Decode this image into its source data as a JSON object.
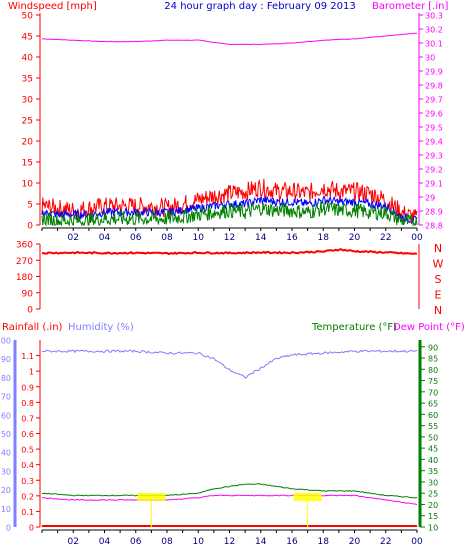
{
  "header": {
    "wind_title": "Windspeed [mph]",
    "graph_title": "24 hour graph day : February 09 2013",
    "baro_title": "Barometer [.in]"
  },
  "colors": {
    "wind_gust": "#ff0000",
    "wind_avg": "#008000",
    "wind_line": "#0000ff",
    "barometer": "#ff00ff",
    "direction": "#ff0000",
    "humidity": "#7f7fff",
    "temperature": "#008000",
    "dewpoint": "#ff00ff",
    "rainfall": "#ff0000",
    "annotation": "#ffff00",
    "axis_x": "#000080"
  },
  "x_tick_labels": [
    "02",
    "04",
    "06",
    "08",
    "10",
    "12",
    "14",
    "16",
    "18",
    "20",
    "22",
    "00"
  ],
  "panel2_labels": {
    "rain": "Rainfall (.in)",
    "humidity": "Humidity (%)",
    "temperature": "Temperature (°F)",
    "dewpoint": "Dew Point (°F)"
  },
  "compass_labels": [
    "N",
    "W",
    "S",
    "E",
    "N"
  ],
  "chart_data": [
    {
      "type": "line",
      "x_unit": "hour",
      "x_range": [
        0,
        24
      ],
      "ylim_left": [
        0,
        50
      ],
      "yticks_left": [
        0,
        5,
        10,
        15,
        20,
        25,
        30,
        35,
        40,
        45,
        50
      ],
      "ylim_right": [
        28.8,
        30.3
      ],
      "yticks_right": [
        "28.8",
        "28.9",
        "29",
        "29.1",
        "29.2",
        "29.3",
        "29.4",
        "29.5",
        "29.6",
        "29.7",
        "29.8",
        "29.9",
        "30",
        "30.1",
        "30.2",
        "30.3"
      ],
      "grid": false,
      "series": [
        {
          "key": "gust",
          "x": [
            0,
            1,
            2,
            3,
            4,
            5,
            6,
            7,
            8,
            9,
            10,
            11,
            12,
            13,
            14,
            15,
            16,
            17,
            18,
            19,
            20,
            21,
            22,
            23,
            24
          ],
          "y": [
            4.5,
            4,
            3.5,
            4,
            4.5,
            4.5,
            4.5,
            4.5,
            4,
            5,
            6,
            7,
            7.5,
            8,
            9,
            8,
            8,
            7.5,
            9,
            8,
            8,
            7.5,
            6,
            3,
            1.5
          ]
        },
        {
          "key": "avg",
          "x": [
            0,
            1,
            2,
            3,
            4,
            5,
            6,
            7,
            8,
            9,
            10,
            11,
            12,
            13,
            14,
            15,
            16,
            17,
            18,
            19,
            20,
            21,
            22,
            23,
            24
          ],
          "y": [
            3,
            2.5,
            2.5,
            2.5,
            3,
            3,
            3,
            3,
            3,
            3.5,
            4,
            4.5,
            5,
            5,
            6,
            5.5,
            5.5,
            5,
            6,
            5.5,
            5.5,
            5,
            4.5,
            2,
            1
          ]
        },
        {
          "key": "dir_low",
          "x": [
            0,
            1,
            2,
            3,
            4,
            5,
            6,
            7,
            8,
            9,
            10,
            11,
            12,
            13,
            14,
            15,
            16,
            17,
            18,
            19,
            20,
            21,
            22,
            23,
            24
          ],
          "y": [
            1.5,
            1,
            1,
            1,
            1.5,
            1.5,
            1.5,
            1.5,
            1.5,
            2,
            2.5,
            3,
            3.5,
            3,
            4,
            3.5,
            3.5,
            3,
            4,
            3.5,
            3.5,
            3,
            3,
            1,
            0.5
          ]
        },
        {
          "key": "barometer",
          "x": [
            0,
            2,
            4,
            6,
            8,
            10,
            12,
            13,
            14,
            16,
            18,
            20,
            22,
            24
          ],
          "y": [
            30.13,
            30.12,
            30.11,
            30.11,
            30.12,
            30.12,
            30.09,
            30.09,
            30.09,
            30.1,
            30.12,
            30.13,
            30.15,
            30.17
          ]
        }
      ]
    },
    {
      "type": "line",
      "x_unit": "hour",
      "x_range": [
        0,
        24
      ],
      "ylim": [
        0,
        360
      ],
      "yticks": [
        0,
        90,
        180,
        270,
        360
      ],
      "series": [
        {
          "key": "direction",
          "x": [
            0,
            2,
            4,
            6,
            8,
            10,
            12,
            14,
            16,
            18,
            19,
            20,
            22,
            24
          ],
          "y": [
            310,
            312,
            310,
            311,
            308,
            312,
            310,
            313,
            312,
            318,
            330,
            320,
            313,
            305
          ]
        }
      ]
    },
    {
      "type": "line",
      "x_unit": "hour",
      "x_range": [
        0,
        24
      ],
      "ylim_humidity": [
        0,
        100
      ],
      "yticks_humidity": [
        0,
        10,
        20,
        30,
        40,
        50,
        60,
        70,
        80,
        90,
        100
      ],
      "ylim_rain": [
        0,
        1.2
      ],
      "yticks_rain": [
        "0",
        "0.1",
        "0.2",
        "0.3",
        "0.4",
        "0.5",
        "0.6",
        "0.7",
        "0.8",
        "0.9",
        "1",
        "1.1"
      ],
      "ylim_temp": [
        10,
        93
      ],
      "yticks_temp": [
        10,
        15,
        20,
        25,
        30,
        35,
        40,
        45,
        50,
        55,
        60,
        65,
        70,
        75,
        80,
        85,
        90
      ],
      "annotations": [
        {
          "x": 7.0,
          "value": ""
        },
        {
          "x": 17.0,
          "value": ""
        }
      ],
      "series": [
        {
          "key": "humidity",
          "x": [
            0,
            2,
            4,
            6,
            8,
            10,
            11,
            12,
            13,
            14,
            15,
            16,
            18,
            20,
            22,
            24
          ],
          "y": [
            94,
            94,
            94,
            94,
            93,
            93,
            90,
            84,
            80,
            85,
            90,
            92,
            93,
            94,
            94,
            94
          ]
        },
        {
          "key": "temperature",
          "x": [
            0,
            2,
            4,
            6,
            8,
            10,
            11,
            12,
            13,
            14,
            15,
            16,
            18,
            20,
            22,
            24
          ],
          "y": [
            25,
            24,
            24,
            24,
            24,
            25,
            27,
            28,
            29,
            29,
            28,
            27,
            26,
            26,
            24,
            23
          ]
        },
        {
          "key": "dewpoint",
          "x": [
            0,
            2,
            4,
            6,
            8,
            10,
            11,
            12,
            13,
            14,
            15,
            16,
            18,
            20,
            22,
            24
          ],
          "y": [
            23,
            22,
            22,
            22,
            22,
            23,
            24,
            24,
            24,
            24,
            24,
            24,
            24,
            24,
            22,
            20
          ]
        },
        {
          "key": "rainfall",
          "x": [
            0,
            24
          ],
          "y": [
            0,
            0
          ]
        }
      ]
    }
  ]
}
